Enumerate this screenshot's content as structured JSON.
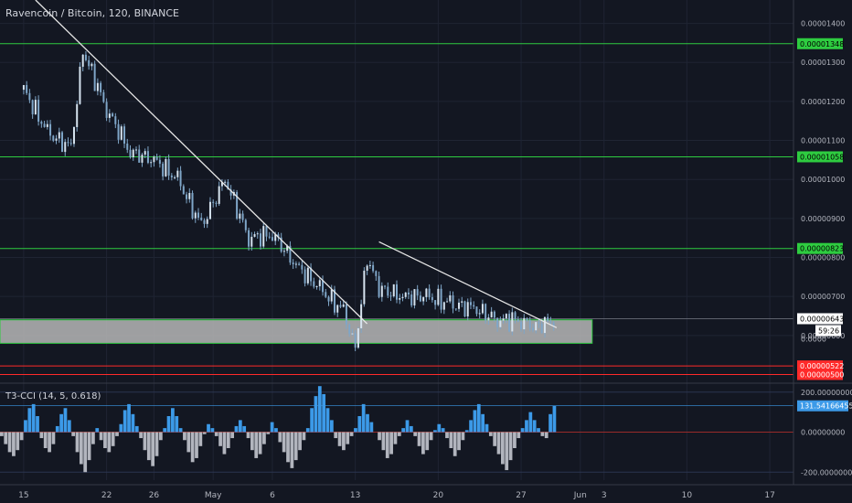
{
  "header": {
    "title": "Ravencoin / Bitcoin, 120, BINANCE"
  },
  "indicator": {
    "title": "T3-CCI (14, 5, 0.618)",
    "y_ticks": [
      "200.00000000",
      "0.00000000",
      "-200.00000000"
    ],
    "current_label": "131.54166455"
  },
  "colors": {
    "background": "#131722",
    "grid": "#1f2433",
    "support_line": "#2ecc40",
    "resistance_line_red": "#ff2a2a",
    "trendline": "#e6e6e6",
    "candle": "#7fa6c8",
    "cci_positive": "#3c9ae8",
    "cci_negative": "#b2b5be",
    "support_zone": "#b7b7b7"
  },
  "chart_data": [
    {
      "type": "candlestick",
      "title": "Ravencoin / Bitcoin, 120, BINANCE",
      "x_tick_labels": [
        "15",
        "22",
        "26",
        "May",
        "6",
        "13",
        "20",
        "27",
        "Jun",
        "3",
        "10",
        "17"
      ],
      "y_tick_labels": [
        "0.00001400",
        "0.00001300",
        "0.00001200",
        "0.00001100",
        "0.00001000",
        "0.00000900",
        "0.00000800",
        "0.00000700",
        "0.00000600"
      ],
      "ylim": [
        4.8e-06,
        1.46e-05
      ],
      "grid": true,
      "price_series": {
        "name": "RVN/BTC",
        "x": [
          "2019-04-15",
          "2019-04-17",
          "2019-04-19",
          "2019-04-20",
          "2019-04-22",
          "2019-04-24",
          "2019-04-26",
          "2019-04-28",
          "2019-04-30",
          "2019-05-02",
          "2019-05-04",
          "2019-05-06",
          "2019-05-08",
          "2019-05-10",
          "2019-05-12",
          "2019-05-13",
          "2019-05-14",
          "2019-05-15",
          "2019-05-17",
          "2019-05-19",
          "2019-05-21",
          "2019-05-23",
          "2019-05-25",
          "2019-05-27",
          "2019-05-28",
          "2019-05-29",
          "2019-05-30"
        ],
        "close": [
          1.23e-05,
          1.12e-05,
          1.08e-05,
          1.33e-05,
          1.18e-05,
          1.07e-05,
          1.05e-05,
          1e-05,
          8.8e-06,
          1e-05,
          8.5e-06,
          8.6e-06,
          7.8e-06,
          7.2e-06,
          6.6e-06,
          5.7e-06,
          8e-06,
          7.2e-06,
          7e-06,
          7e-06,
          6.8e-06,
          6.7e-06,
          6.4e-06,
          6.4e-06,
          6.2e-06,
          6.3e-06,
          6.43e-06
        ]
      },
      "horizontal_levels": [
        {
          "label": "0.00001348",
          "value": 1.348e-05,
          "color": "#2ecc40"
        },
        {
          "label": "0.00001058",
          "value": 1.058e-05,
          "color": "#2ecc40"
        },
        {
          "label": "0.00000823",
          "value": 8.23e-06,
          "color": "#2ecc40"
        },
        {
          "label": "0.00000522",
          "value": 5.22e-06,
          "color": "#ff2a2a"
        },
        {
          "label": "0.00000500",
          "value": 5e-06,
          "color": "#ff2a2a"
        }
      ],
      "support_zone": {
        "low": 5.8e-06,
        "high": 6.4e-06
      },
      "trendlines": [
        {
          "from": [
            "2019-04-16",
            1.46e-05
          ],
          "to": [
            "2019-05-14",
            6.3e-06
          ]
        },
        {
          "from": [
            "2019-05-15",
            8.4e-06
          ],
          "to": [
            "2019-05-30",
            6.2e-06
          ]
        }
      ],
      "last_price_label": "0.00000643",
      "countdown_label": "59:26",
      "partial_price_label": "0.0000"
    },
    {
      "type": "bar",
      "title": "T3-CCI (14, 5, 0.618)",
      "ylim": [
        -240,
        240
      ],
      "y_tick_labels": [
        "200.00000000",
        "0.00000000",
        "-200.00000000"
      ],
      "series": [
        {
          "name": "T3-CCI (14, 5, 0.618)",
          "values": [
            -20,
            -60,
            -100,
            -120,
            -90,
            -40,
            60,
            120,
            140,
            80,
            -30,
            -80,
            -100,
            -60,
            30,
            90,
            120,
            60,
            -20,
            -100,
            -160,
            -200,
            -140,
            -60,
            20,
            -40,
            -80,
            -100,
            -70,
            -20,
            40,
            110,
            140,
            90,
            30,
            -30,
            -90,
            -140,
            -170,
            -120,
            -40,
            20,
            80,
            120,
            80,
            20,
            -40,
            -100,
            -150,
            -130,
            -70,
            -10,
            40,
            20,
            -20,
            -70,
            -110,
            -80,
            -30,
            30,
            60,
            30,
            -30,
            -90,
            -130,
            -110,
            -60,
            -10,
            50,
            20,
            -50,
            -100,
            -150,
            -180,
            -140,
            -90,
            -40,
            20,
            120,
            180,
            230,
            190,
            120,
            60,
            -30,
            -70,
            -90,
            -60,
            -20,
            20,
            80,
            140,
            90,
            50,
            0,
            -40,
            -90,
            -130,
            -110,
            -60,
            -20,
            20,
            60,
            30,
            -20,
            -70,
            -110,
            -90,
            -40,
            10,
            40,
            20,
            -30,
            -80,
            -120,
            -90,
            -40,
            10,
            60,
            110,
            140,
            90,
            40,
            -20,
            -70,
            -110,
            -160,
            -190,
            -140,
            -80,
            -30,
            20,
            60,
            100,
            60,
            20,
            -20,
            -30,
            90,
            131.54
          ]
        }
      ]
    }
  ]
}
